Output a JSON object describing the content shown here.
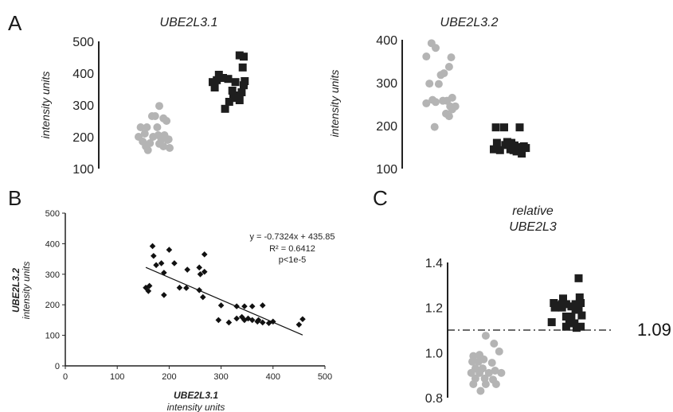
{
  "panel_labels": {
    "a": "A",
    "b": "B",
    "c": "C"
  },
  "colors": {
    "group1": "#b4b4b4",
    "group2": "#1e1e1e",
    "axis": "#222222"
  },
  "chart_data": [
    {
      "type": "scatter",
      "panel": "A",
      "title": "UBE2L3.1",
      "ylabel": "intensity units",
      "ylim": [
        100,
        500
      ],
      "yticks": [
        "100",
        "200",
        "300",
        "400",
        "500"
      ],
      "series": [
        {
          "marker": "circle",
          "color": "#b4b4b4",
          "points": [
            [
              -0.8,
              230
            ],
            [
              -0.2,
              230
            ],
            [
              1.0,
              297
            ],
            [
              0.6,
              265
            ],
            [
              1.4,
              258
            ],
            [
              -0.4,
              210
            ],
            [
              0.4,
              200
            ],
            [
              -1.0,
              200
            ],
            [
              0.9,
              205
            ],
            [
              1.5,
              205
            ],
            [
              1.2,
              192
            ],
            [
              1.8,
              190
            ],
            [
              -0.6,
              185
            ],
            [
              0.1,
              180
            ],
            [
              1.0,
              178
            ],
            [
              -0.3,
              170
            ],
            [
              2.0,
              165
            ],
            [
              -0.1,
              158
            ],
            [
              1.4,
              170
            ],
            [
              1.7,
              250
            ],
            [
              1.9,
              192
            ],
            [
              0.8,
              230
            ],
            [
              0.3,
              265
            ]
          ]
        },
        {
          "marker": "square",
          "color": "#1e1e1e",
          "points": [
            [
              -1.0,
              372
            ],
            [
              -0.4,
              395
            ],
            [
              0.0,
              385
            ],
            [
              0.5,
              382
            ],
            [
              1.2,
              372
            ],
            [
              1.6,
              456
            ],
            [
              2.0,
              452
            ],
            [
              1.9,
              418
            ],
            [
              -0.8,
              355
            ],
            [
              0.9,
              345
            ],
            [
              1.4,
              330
            ],
            [
              2.0,
              362
            ],
            [
              1.0,
              322
            ],
            [
              1.6,
              315
            ],
            [
              0.6,
              310
            ],
            [
              1.8,
              340
            ],
            [
              0.2,
              288
            ],
            [
              -0.6,
              378
            ],
            [
              2.1,
              375
            ]
          ]
        }
      ]
    },
    {
      "type": "scatter",
      "panel": "A",
      "title": "UBE2L3.2",
      "ylabel": "intensity units",
      "ylim": [
        100,
        400
      ],
      "yticks": [
        "100",
        "200",
        "300",
        "400"
      ],
      "series": [
        {
          "marker": "circle",
          "color": "#b4b4b4",
          "points": [
            [
              -0.4,
              392
            ],
            [
              0.0,
              381
            ],
            [
              -0.9,
              361
            ],
            [
              1.5,
              359
            ],
            [
              1.3,
              337
            ],
            [
              0.8,
              322
            ],
            [
              0.5,
              318
            ],
            [
              -0.6,
              298
            ],
            [
              0.3,
              297
            ],
            [
              -0.3,
              260
            ],
            [
              -0.9,
              252
            ],
            [
              0.0,
              255
            ],
            [
              1.1,
              258
            ],
            [
              1.6,
              265
            ],
            [
              1.4,
              245
            ],
            [
              1.9,
              245
            ],
            [
              1.0,
              228
            ],
            [
              1.6,
              238
            ],
            [
              1.3,
              222
            ],
            [
              -0.1,
              197
            ],
            [
              0.7,
              258
            ]
          ]
        },
        {
          "marker": "square",
          "color": "#1e1e1e",
          "points": [
            [
              -0.8,
              196
            ],
            [
              0.0,
              196
            ],
            [
              1.5,
              196
            ],
            [
              -1.0,
              145
            ],
            [
              -0.4,
              143
            ],
            [
              0.3,
              162
            ],
            [
              0.7,
              160
            ],
            [
              1.0,
              154
            ],
            [
              1.3,
              150
            ],
            [
              1.6,
              148
            ],
            [
              1.9,
              152
            ],
            [
              0.6,
              145
            ],
            [
              1.2,
              140
            ],
            [
              1.7,
              135
            ],
            [
              -0.7,
              160
            ],
            [
              0.1,
              155
            ],
            [
              0.9,
              143
            ],
            [
              2.1,
              148
            ]
          ]
        }
      ]
    },
    {
      "type": "scatter",
      "panel": "B",
      "xlabel": "UBE2L3.1",
      "xlabel_sub": "intensity units",
      "ylabel": "UBE2L3.2",
      "ylabel_sub": "intensity units",
      "xlim": [
        0,
        500
      ],
      "ylim": [
        0,
        500
      ],
      "xticks": [
        "0",
        "100",
        "200",
        "300",
        "400",
        "500"
      ],
      "yticks": [
        "0",
        "100",
        "200",
        "300",
        "400",
        "500"
      ],
      "points": [
        [
          168,
          392
        ],
        [
          200,
          380
        ],
        [
          170,
          360
        ],
        [
          268,
          365
        ],
        [
          185,
          336
        ],
        [
          210,
          336
        ],
        [
          258,
          322
        ],
        [
          260,
          300
        ],
        [
          190,
          305
        ],
        [
          235,
          315
        ],
        [
          175,
          330
        ],
        [
          162,
          262
        ],
        [
          155,
          256
        ],
        [
          160,
          245
        ],
        [
          190,
          232
        ],
        [
          268,
          308
        ],
        [
          233,
          255
        ],
        [
          258,
          248
        ],
        [
          220,
          256
        ],
        [
          265,
          225
        ],
        [
          300,
          198
        ],
        [
          330,
          195
        ],
        [
          345,
          195
        ],
        [
          360,
          195
        ],
        [
          380,
          198
        ],
        [
          340,
          160
        ],
        [
          352,
          155
        ],
        [
          360,
          150
        ],
        [
          372,
          150
        ],
        [
          370,
          145
        ],
        [
          330,
          155
        ],
        [
          345,
          150
        ],
        [
          295,
          150
        ],
        [
          315,
          142
        ],
        [
          380,
          142
        ],
        [
          400,
          145
        ],
        [
          392,
          140
        ],
        [
          450,
          135
        ],
        [
          457,
          153
        ]
      ],
      "trendline": {
        "slope": -0.7324,
        "intercept": 435.85,
        "x_range": [
          155,
          457
        ]
      },
      "annotations": [
        "y = -0.7324x + 435.85",
        "R² = 0.6412",
        "p<1e-5"
      ]
    },
    {
      "type": "scatter",
      "panel": "C",
      "title_lines": [
        "relative",
        "UBE2L3"
      ],
      "ylim": [
        0.8,
        1.4
      ],
      "yticks": [
        "0.8",
        "1.0",
        "1.2",
        "1.4"
      ],
      "reference_line": {
        "y": 1.1,
        "label": "1.09",
        "style": "dash-dot"
      },
      "series": [
        {
          "marker": "circle",
          "color": "#b4b4b4",
          "points": [
            [
              -0.9,
              0.985
            ],
            [
              -0.3,
              0.99
            ],
            [
              0.3,
              1.075
            ],
            [
              1.1,
              1.04
            ],
            [
              1.6,
              1.005
            ],
            [
              -1.0,
              0.96
            ],
            [
              -0.4,
              0.96
            ],
            [
              0.1,
              0.97
            ],
            [
              0.9,
              0.955
            ],
            [
              -0.7,
              0.93
            ],
            [
              0.0,
              0.93
            ],
            [
              -1.1,
              0.91
            ],
            [
              -0.3,
              0.91
            ],
            [
              0.6,
              0.91
            ],
            [
              1.2,
              0.92
            ],
            [
              1.8,
              0.91
            ],
            [
              -0.7,
              0.885
            ],
            [
              0.2,
              0.885
            ],
            [
              1.0,
              0.88
            ],
            [
              -0.9,
              0.86
            ],
            [
              0.3,
              0.86
            ],
            [
              1.3,
              0.86
            ],
            [
              -0.2,
              0.83
            ]
          ]
        },
        {
          "marker": "square",
          "color": "#1e1e1e",
          "points": [
            [
              1.5,
              1.33
            ],
            [
              1.6,
              1.245
            ],
            [
              0.0,
              1.24
            ],
            [
              -0.9,
              1.22
            ],
            [
              -0.6,
              1.21
            ],
            [
              -0.1,
              1.215
            ],
            [
              0.3,
              1.215
            ],
            [
              0.8,
              1.205
            ],
            [
              1.2,
              1.215
            ],
            [
              1.7,
              1.22
            ],
            [
              -0.8,
              1.2
            ],
            [
              -0.1,
              1.2
            ],
            [
              1.2,
              1.195
            ],
            [
              1.5,
              1.19
            ],
            [
              0.3,
              1.16
            ],
            [
              0.8,
              1.16
            ],
            [
              1.8,
              1.165
            ],
            [
              -1.1,
              1.135
            ],
            [
              0.6,
              1.13
            ],
            [
              1.1,
              1.13
            ],
            [
              0.3,
              1.115
            ],
            [
              1.7,
              1.115
            ],
            [
              1.3,
              1.11
            ]
          ]
        }
      ]
    }
  ]
}
